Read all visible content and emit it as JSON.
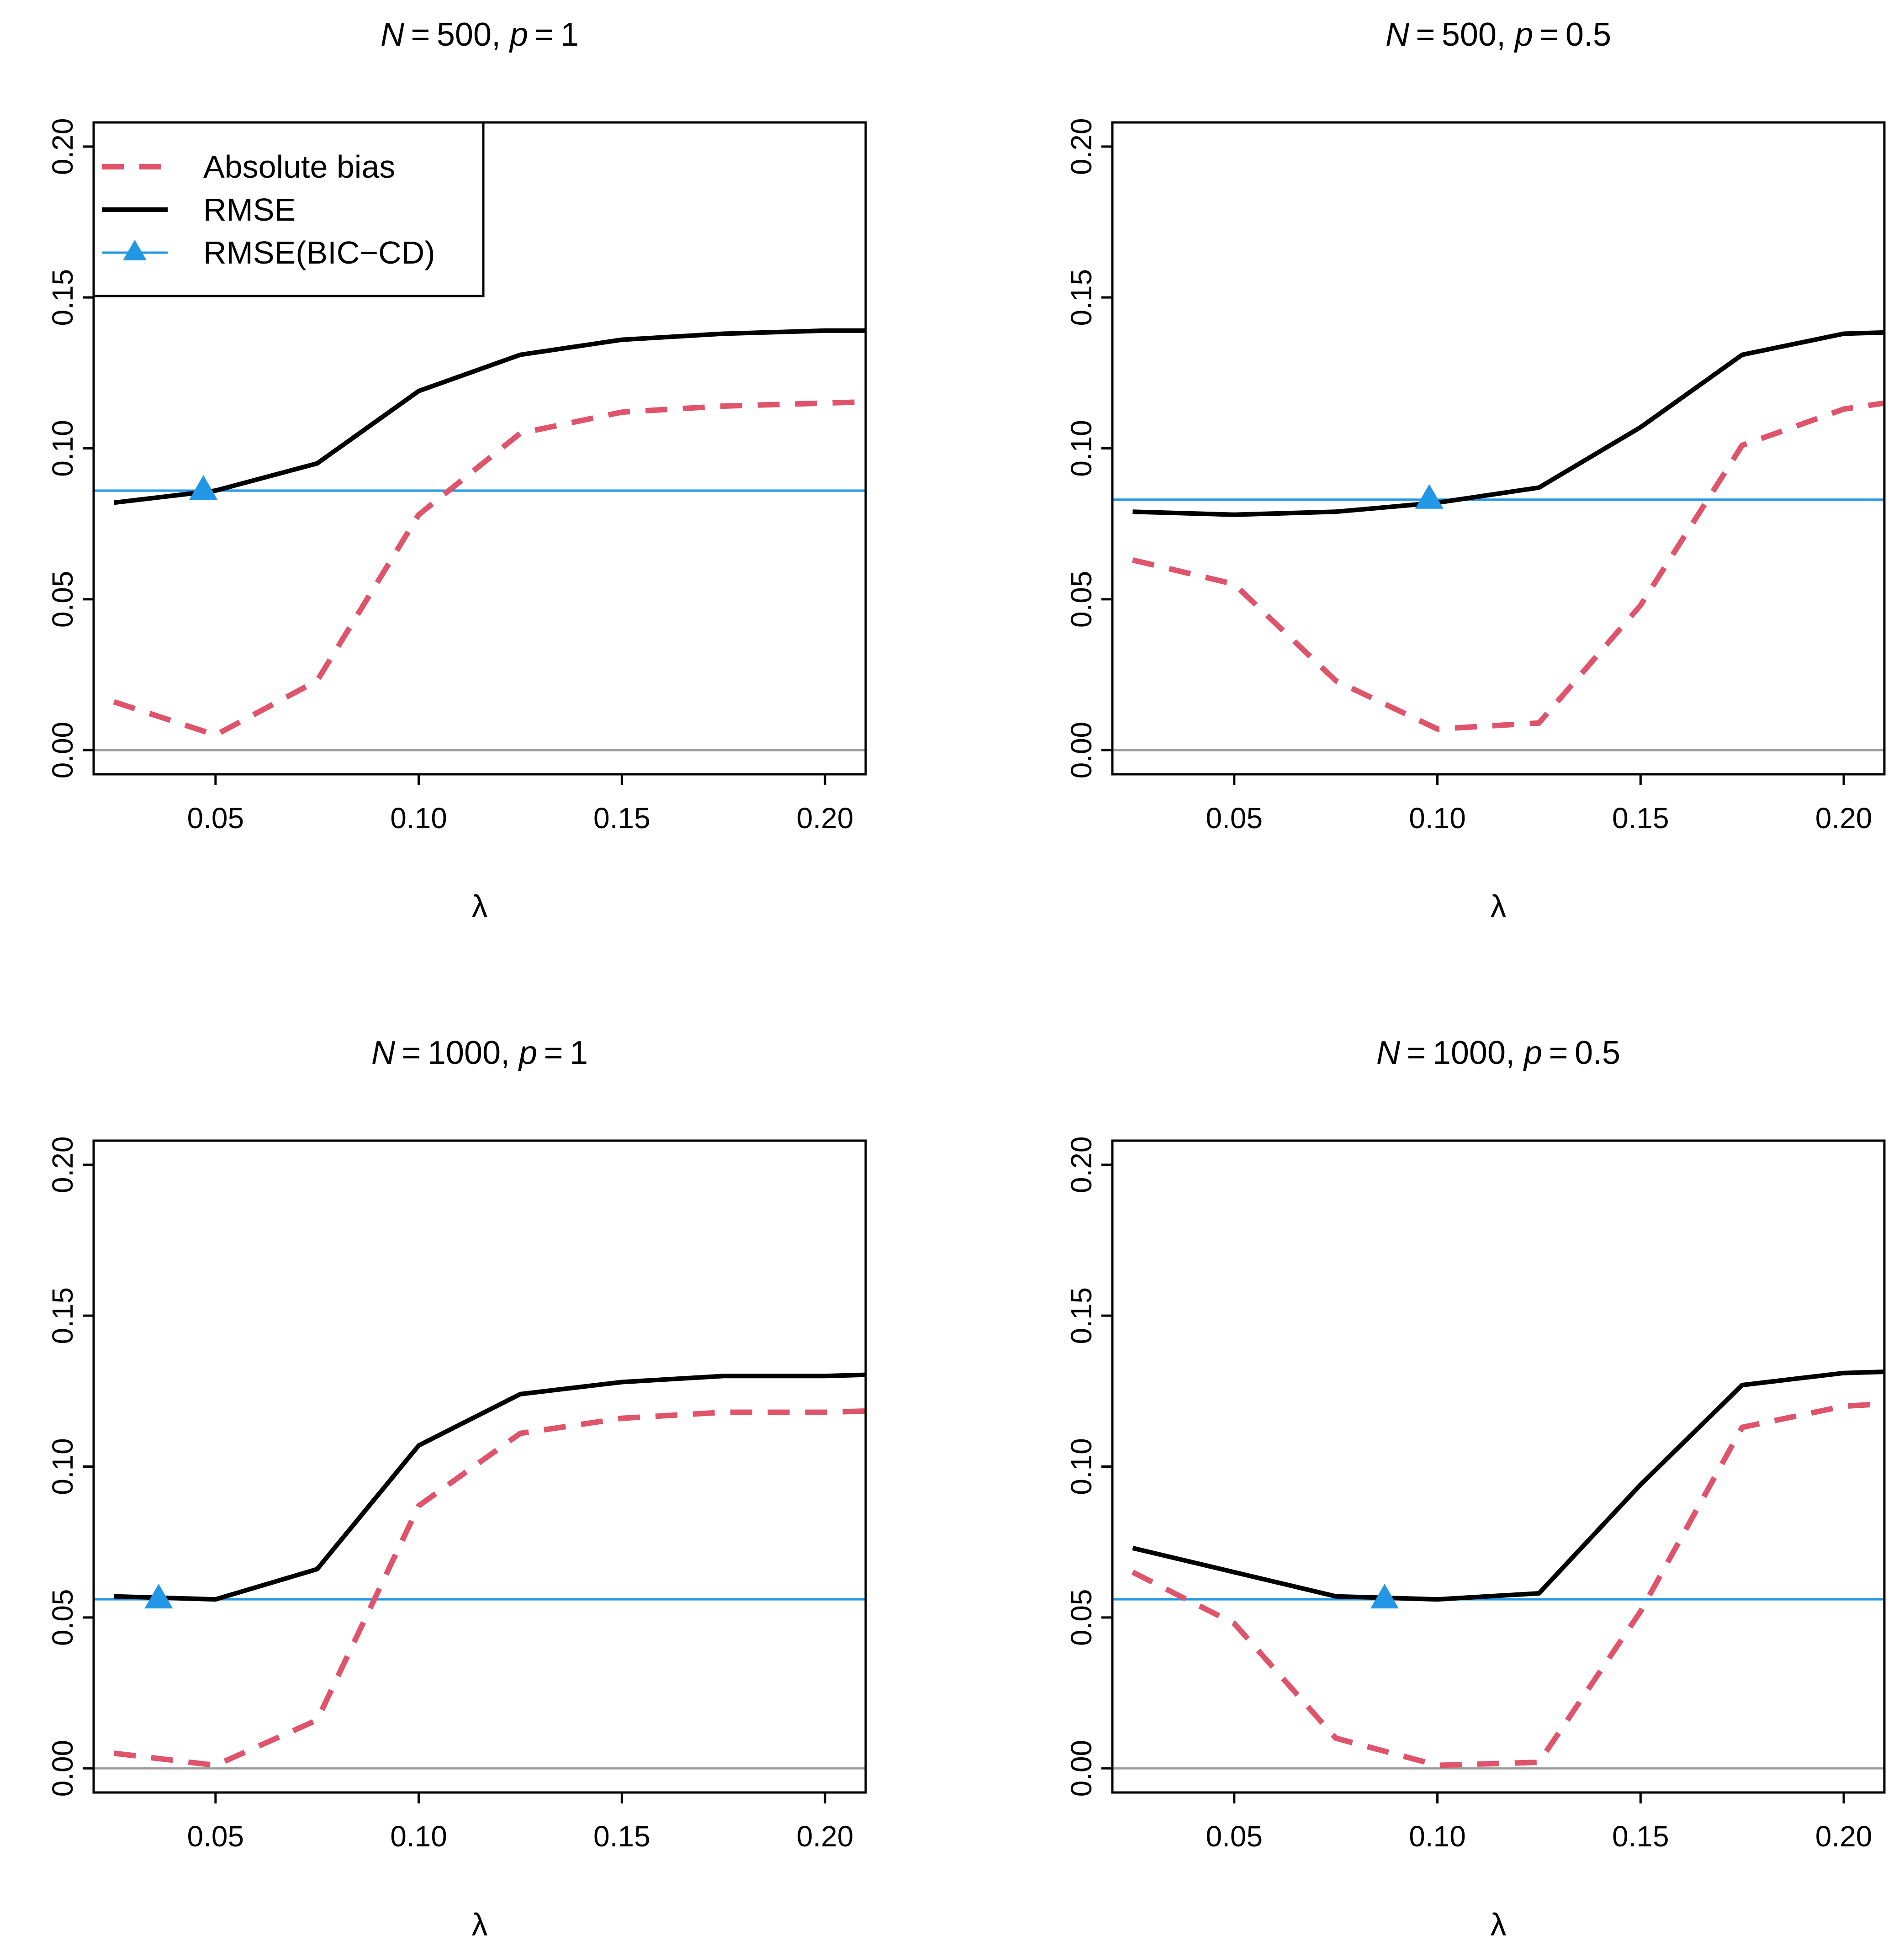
{
  "colors": {
    "bias": "#DF536B",
    "rmse": "#000000",
    "bic_cd": "#2297E6",
    "zero_line": "#9E9E9E"
  },
  "legend": {
    "position": "top-left of first panel",
    "entries": [
      {
        "label": "Absolute bias",
        "style": "dashed",
        "color": "#DF536B"
      },
      {
        "label": "RMSE",
        "style": "solid",
        "color": "#000000"
      },
      {
        "label": "RMSE(BIC−CD)",
        "style": "solid-with-triangle",
        "color": "#2297E6"
      }
    ]
  },
  "chart_data": [
    {
      "type": "line",
      "title": {
        "N": "500",
        "p": "1"
      },
      "xlabel": "λ",
      "ylabel": "",
      "xlim": [
        0.02,
        0.21
      ],
      "ylim": [
        -0.008,
        0.208
      ],
      "xticks": [
        "0.05",
        "0.10",
        "0.15",
        "0.20"
      ],
      "yticks": [
        "0.00",
        "0.05",
        "0.10",
        "0.15",
        "0.20"
      ],
      "grid": false,
      "hline": 0,
      "x": [
        0.025,
        0.05,
        0.075,
        0.1,
        0.125,
        0.15,
        0.175,
        0.2,
        0.225
      ],
      "series": [
        {
          "name": "Absolute bias",
          "values": [
            0.016,
            0.005,
            0.023,
            0.078,
            0.105,
            0.112,
            0.114,
            0.115,
            0.116
          ]
        },
        {
          "name": "RMSE",
          "values": [
            0.082,
            0.086,
            0.095,
            0.119,
            0.131,
            0.136,
            0.138,
            0.139,
            0.139
          ]
        }
      ],
      "bic_cd": {
        "rmse": 0.086,
        "lambda": 0.047
      }
    },
    {
      "type": "line",
      "title": {
        "N": "500",
        "p": "0.5"
      },
      "xlabel": "λ",
      "ylabel": "",
      "xlim": [
        0.02,
        0.21
      ],
      "ylim": [
        -0.008,
        0.208
      ],
      "xticks": [
        "0.05",
        "0.10",
        "0.15",
        "0.20"
      ],
      "yticks": [
        "0.00",
        "0.05",
        "0.10",
        "0.15",
        "0.20"
      ],
      "grid": false,
      "hline": 0,
      "x": [
        0.025,
        0.05,
        0.075,
        0.1,
        0.125,
        0.15,
        0.175,
        0.2,
        0.225
      ],
      "series": [
        {
          "name": "Absolute bias",
          "values": [
            0.063,
            0.055,
            0.023,
            0.007,
            0.009,
            0.048,
            0.101,
            0.113,
            0.118
          ]
        },
        {
          "name": "RMSE",
          "values": [
            0.079,
            0.078,
            0.079,
            0.082,
            0.087,
            0.107,
            0.131,
            0.138,
            0.139
          ]
        }
      ],
      "bic_cd": {
        "rmse": 0.083,
        "lambda": 0.098
      }
    },
    {
      "type": "line",
      "title": {
        "N": "1000",
        "p": "1"
      },
      "xlabel": "λ",
      "ylabel": "",
      "xlim": [
        0.02,
        0.21
      ],
      "ylim": [
        -0.008,
        0.208
      ],
      "xticks": [
        "0.05",
        "0.10",
        "0.15",
        "0.20"
      ],
      "yticks": [
        "0.00",
        "0.05",
        "0.10",
        "0.15",
        "0.20"
      ],
      "grid": false,
      "hline": 0,
      "x": [
        0.025,
        0.05,
        0.075,
        0.1,
        0.125,
        0.15,
        0.175,
        0.2,
        0.225
      ],
      "series": [
        {
          "name": "Absolute bias",
          "values": [
            0.005,
            0.001,
            0.016,
            0.087,
            0.111,
            0.116,
            0.118,
            0.118,
            0.119
          ]
        },
        {
          "name": "RMSE",
          "values": [
            0.057,
            0.056,
            0.066,
            0.107,
            0.124,
            0.128,
            0.13,
            0.13,
            0.131
          ]
        }
      ],
      "bic_cd": {
        "rmse": 0.056,
        "lambda": 0.036
      }
    },
    {
      "type": "line",
      "title": {
        "N": "1000",
        "p": "0.5"
      },
      "xlabel": "λ",
      "ylabel": "",
      "xlim": [
        0.02,
        0.21
      ],
      "ylim": [
        -0.008,
        0.208
      ],
      "xticks": [
        "0.05",
        "0.10",
        "0.15",
        "0.20"
      ],
      "yticks": [
        "0.00",
        "0.05",
        "0.10",
        "0.15",
        "0.20"
      ],
      "grid": false,
      "hline": 0,
      "x": [
        0.025,
        0.05,
        0.075,
        0.1,
        0.125,
        0.15,
        0.175,
        0.2,
        0.225
      ],
      "series": [
        {
          "name": "Absolute bias",
          "values": [
            0.065,
            0.048,
            0.01,
            0.001,
            0.002,
            0.052,
            0.113,
            0.12,
            0.122
          ]
        },
        {
          "name": "RMSE",
          "values": [
            0.073,
            0.065,
            0.057,
            0.056,
            0.058,
            0.094,
            0.127,
            0.131,
            0.132
          ]
        }
      ],
      "bic_cd": {
        "rmse": 0.056,
        "lambda": 0.087
      }
    }
  ]
}
